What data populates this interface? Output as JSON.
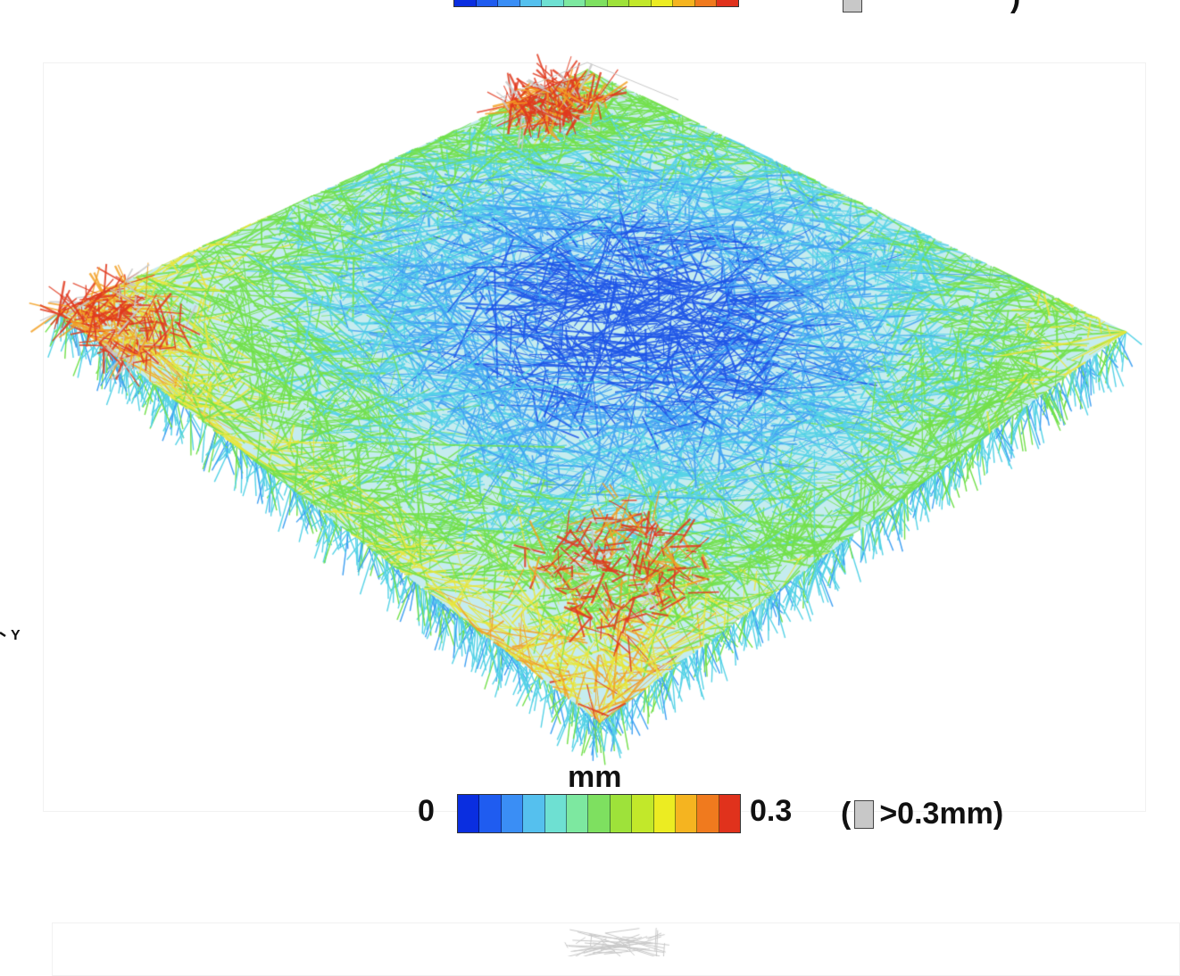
{
  "top_panel": {
    "legend_colors": [
      "#0a2ee0",
      "#1f5cf0",
      "#3a8ef5",
      "#55c0ee",
      "#6ee0d2",
      "#7de8a0",
      "#7ee060",
      "#9ee23a",
      "#c2e82a",
      "#ecec22",
      "#f5b420",
      "#f07a1e",
      "#e0321c"
    ],
    "note_close": ")"
  },
  "main_panel": {
    "colors": {
      "blue": "#1e56e8",
      "light_blue": "#3fa0f2",
      "cyan": "#55d2e6",
      "green": "#72e04a",
      "yellow": "#e8e63a",
      "orange": "#f2a024",
      "red": "#e03a1e",
      "gray": "#c8c8c8"
    },
    "axis_label": "Y",
    "legend": {
      "unit": "mm",
      "min_label": "0",
      "max_label": "0.3",
      "colors": [
        "#0a2ee0",
        "#1f5cf0",
        "#3a8ef5",
        "#55c0ee",
        "#6ee0d2",
        "#7de8a0",
        "#7ee060",
        "#9ee23a",
        "#c2e82a",
        "#ecec22",
        "#f5b420",
        "#f07a1e",
        "#e0321c"
      ],
      "note_open": "(",
      "note_text": ">0.3mm)",
      "note_swatch_color": "#c8c8c8"
    }
  }
}
